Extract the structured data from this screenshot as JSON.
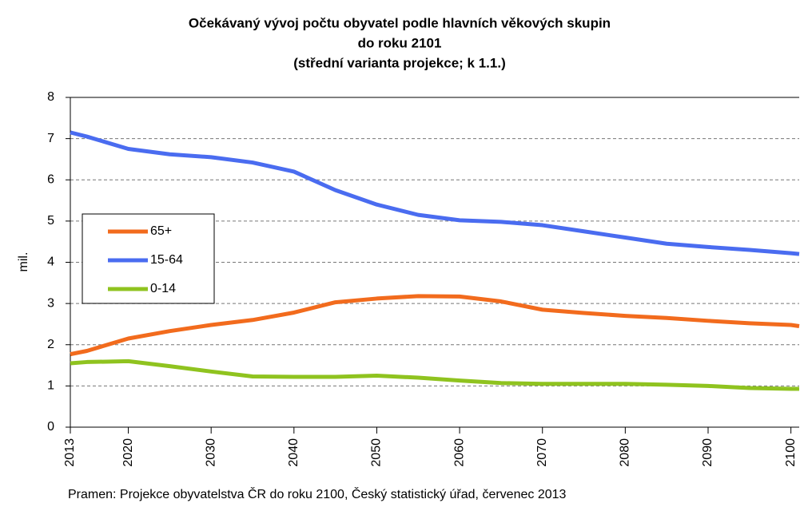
{
  "chart_data": {
    "type": "line",
    "title": [
      "Očekávaný vývoj počtu obyvatel podle hlavních věkových skupin",
      "do roku 2101",
      "(střední varianta projekce; k 1.1.)"
    ],
    "ylabel": "mil.",
    "source": "Pramen: Projekce obyvatelstva ČR do roku 2100, Český statistický úřad, červenec 2013",
    "x": [
      2013,
      2015,
      2020,
      2025,
      2030,
      2035,
      2040,
      2045,
      2050,
      2055,
      2060,
      2065,
      2070,
      2075,
      2080,
      2085,
      2090,
      2095,
      2100,
      2101
    ],
    "series": [
      {
        "name": "65+",
        "color": "#f26b1d",
        "values": [
          1.77,
          1.85,
          2.15,
          2.33,
          2.48,
          2.6,
          2.78,
          3.03,
          3.12,
          3.18,
          3.17,
          3.05,
          2.85,
          2.77,
          2.7,
          2.65,
          2.58,
          2.52,
          2.48,
          2.45
        ]
      },
      {
        "name": "15-64",
        "color": "#4a6cf0",
        "values": [
          7.15,
          7.05,
          6.75,
          6.62,
          6.55,
          6.42,
          6.2,
          5.75,
          5.4,
          5.15,
          5.02,
          4.98,
          4.9,
          4.75,
          4.6,
          4.45,
          4.37,
          4.3,
          4.22,
          4.2
        ]
      },
      {
        "name": "0-14",
        "color": "#8fc31f",
        "values": [
          1.55,
          1.58,
          1.6,
          1.48,
          1.35,
          1.23,
          1.22,
          1.22,
          1.25,
          1.2,
          1.13,
          1.07,
          1.05,
          1.05,
          1.05,
          1.03,
          1.0,
          0.95,
          0.93,
          0.93
        ]
      }
    ],
    "xlim": [
      2013,
      2101
    ],
    "xticks": [
      2013,
      2020,
      2030,
      2040,
      2050,
      2060,
      2070,
      2080,
      2090,
      2100
    ],
    "ylim": [
      0,
      8
    ],
    "yticks": [
      0,
      1,
      2,
      3,
      4,
      5,
      6,
      7,
      8
    ],
    "grid": true
  }
}
